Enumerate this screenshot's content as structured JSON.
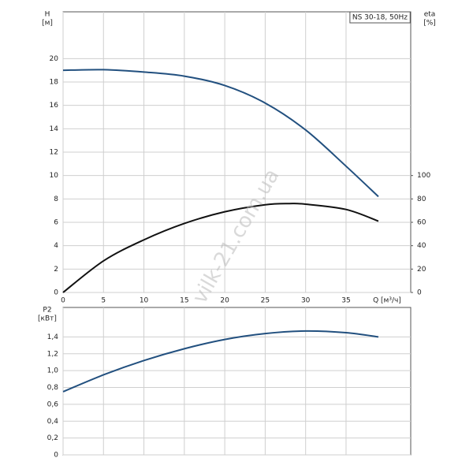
{
  "watermark": "vilk-21.com.ua",
  "chart_data": [
    {
      "type": "line",
      "annotation": "NS 30-18, 50Hz",
      "ylabel": "H",
      "yunit": "[м]",
      "y2label": "eta",
      "y2unit": "[%]",
      "xlabel": "Q [м³/ч]",
      "x": [
        0,
        5,
        10,
        15,
        20,
        25,
        28,
        30,
        35,
        39
      ],
      "xlim": [
        0,
        43
      ],
      "xticks": [
        0,
        5,
        10,
        15,
        20,
        25,
        30,
        35
      ],
      "ylim": [
        0,
        24
      ],
      "yticks": [
        0,
        2,
        4,
        6,
        8,
        10,
        12,
        14,
        16,
        18,
        20
      ],
      "y2lim": [
        0,
        240
      ],
      "y2ticks": [
        0,
        20,
        40,
        60,
        80,
        100
      ],
      "grid": true,
      "series": [
        {
          "color": "#22507f",
          "values": [
            19,
            19.05,
            18.85,
            18.5,
            17.7,
            16.2,
            null,
            13.9,
            10.8,
            8.2
          ]
        },
        {
          "color": "#111111",
          "axis": "y2",
          "values": [
            0,
            27,
            45,
            59,
            69,
            75,
            76,
            75.5,
            71,
            61
          ]
        }
      ]
    },
    {
      "type": "line",
      "ylabel": "P2",
      "yunit": "[кВт]",
      "x": [
        0,
        5,
        10,
        15,
        20,
        25,
        30,
        35,
        39
      ],
      "xlim": [
        0,
        43
      ],
      "xticks": [
        0,
        5,
        10,
        15,
        20,
        25,
        30,
        35
      ],
      "ylim": [
        0,
        1.75
      ],
      "yticks": [
        0,
        {
          "value": 0.2,
          "label": "0,2"
        },
        {
          "value": 0.4,
          "label": "0,4"
        },
        {
          "value": 0.6,
          "label": "0,6"
        },
        {
          "value": 0.8,
          "label": "0,8"
        },
        {
          "value": 1.0,
          "label": "1,0"
        },
        {
          "value": 1.2,
          "label": "1,2"
        },
        {
          "value": 1.4,
          "label": "1,4"
        }
      ],
      "grid": true,
      "series": [
        {
          "color": "#22507f",
          "values": [
            0.75,
            0.95,
            1.12,
            1.26,
            1.37,
            1.44,
            1.47,
            1.45,
            1.4
          ]
        }
      ]
    }
  ]
}
